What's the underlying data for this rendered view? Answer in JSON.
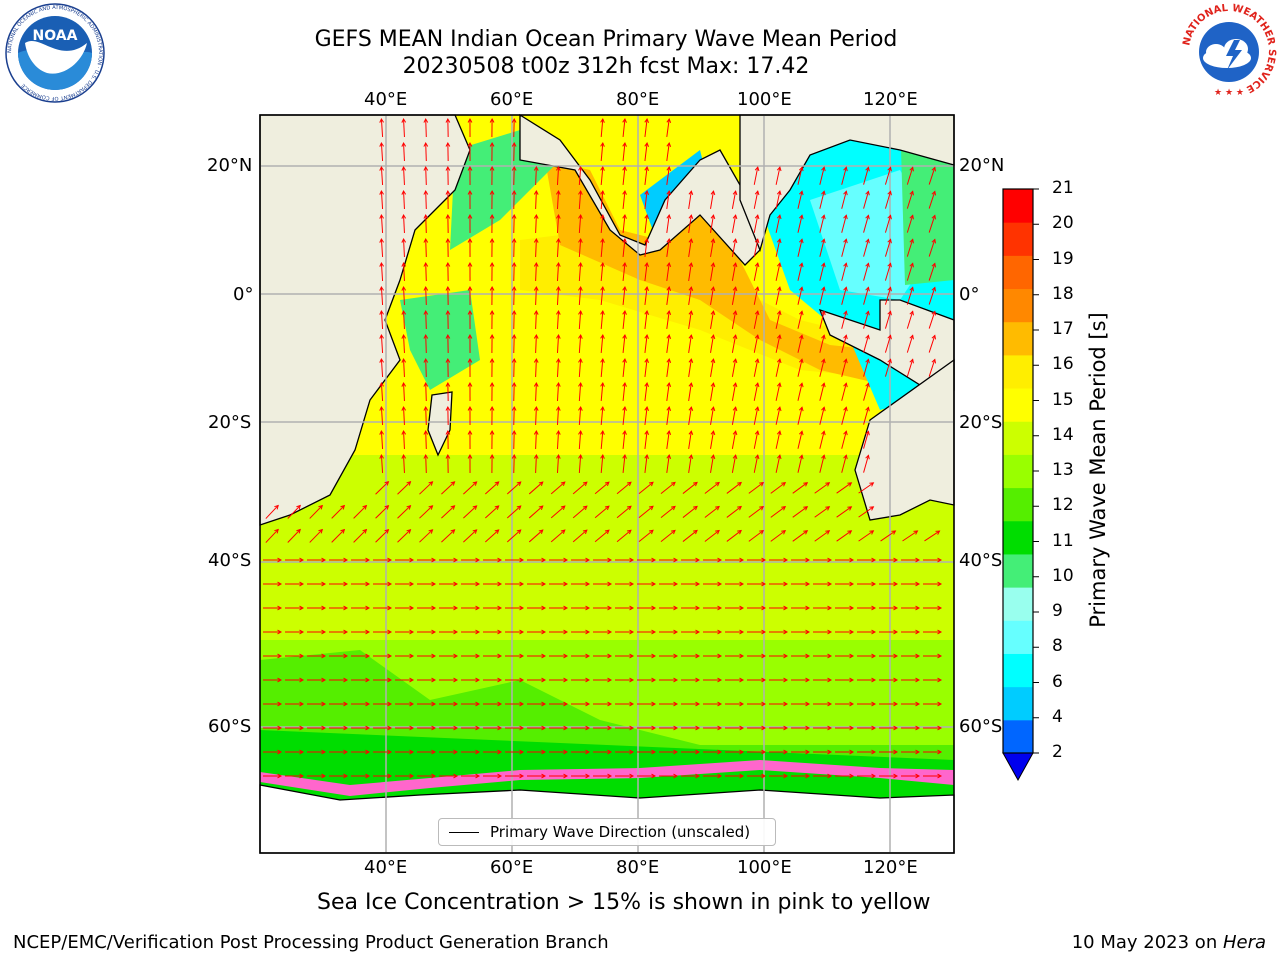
{
  "title": {
    "line1": "GEFS MEAN Indian Ocean Primary Wave Mean Period",
    "line2": "20230508 t00z 312h fcst   Max: 17.42"
  },
  "map": {
    "lon_range": [
      20,
      130
    ],
    "lat_range": [
      -74,
      28
    ],
    "lon_ticks": [
      "40°E",
      "60°E",
      "80°E",
      "100°E",
      "120°E"
    ],
    "lat_ticks": [
      "20°N",
      "0°",
      "20°S",
      "40°S",
      "60°S"
    ],
    "gridlines": true,
    "land_color": "#efeede",
    "arrow_color": "#ff0000",
    "legend": {
      "label": "Primary Wave Direction (unscaled)",
      "placement": "bottom-center"
    }
  },
  "colorbar": {
    "title": "Primary Wave Mean Period [s]",
    "ticks": [
      "2",
      "4",
      "6",
      "8",
      "9",
      "10",
      "11",
      "12",
      "13",
      "14",
      "15",
      "16",
      "17",
      "18",
      "19",
      "20",
      "21"
    ],
    "colors": [
      "#0066ff",
      "#00ccff",
      "#00ffff",
      "#66ffff",
      "#99ffee",
      "#44ee77",
      "#00dd00",
      "#55ee00",
      "#99ff00",
      "#ccff00",
      "#ffff00",
      "#ffee00",
      "#ffbb00",
      "#ff8800",
      "#ff6600",
      "#ff3300",
      "#ff0000"
    ],
    "under_color": "#0000ee"
  },
  "caption": "Sea Ice Concentration > 15% is shown in pink to yellow",
  "footer": {
    "left": "NCEP/EMC/Verification Post Processing Product Generation Branch",
    "right_prefix": "10 May 2023 on ",
    "right_italic": "Hera"
  },
  "logos": {
    "noaa": "NOAA",
    "noaa_ring_text": "NATIONAL OCEANIC AND ATMOSPHERIC ADMINISTRATION · U.S. DEPARTMENT OF COMMERCE",
    "nws_ring_text": "NATIONAL WEATHER SERVICE"
  }
}
